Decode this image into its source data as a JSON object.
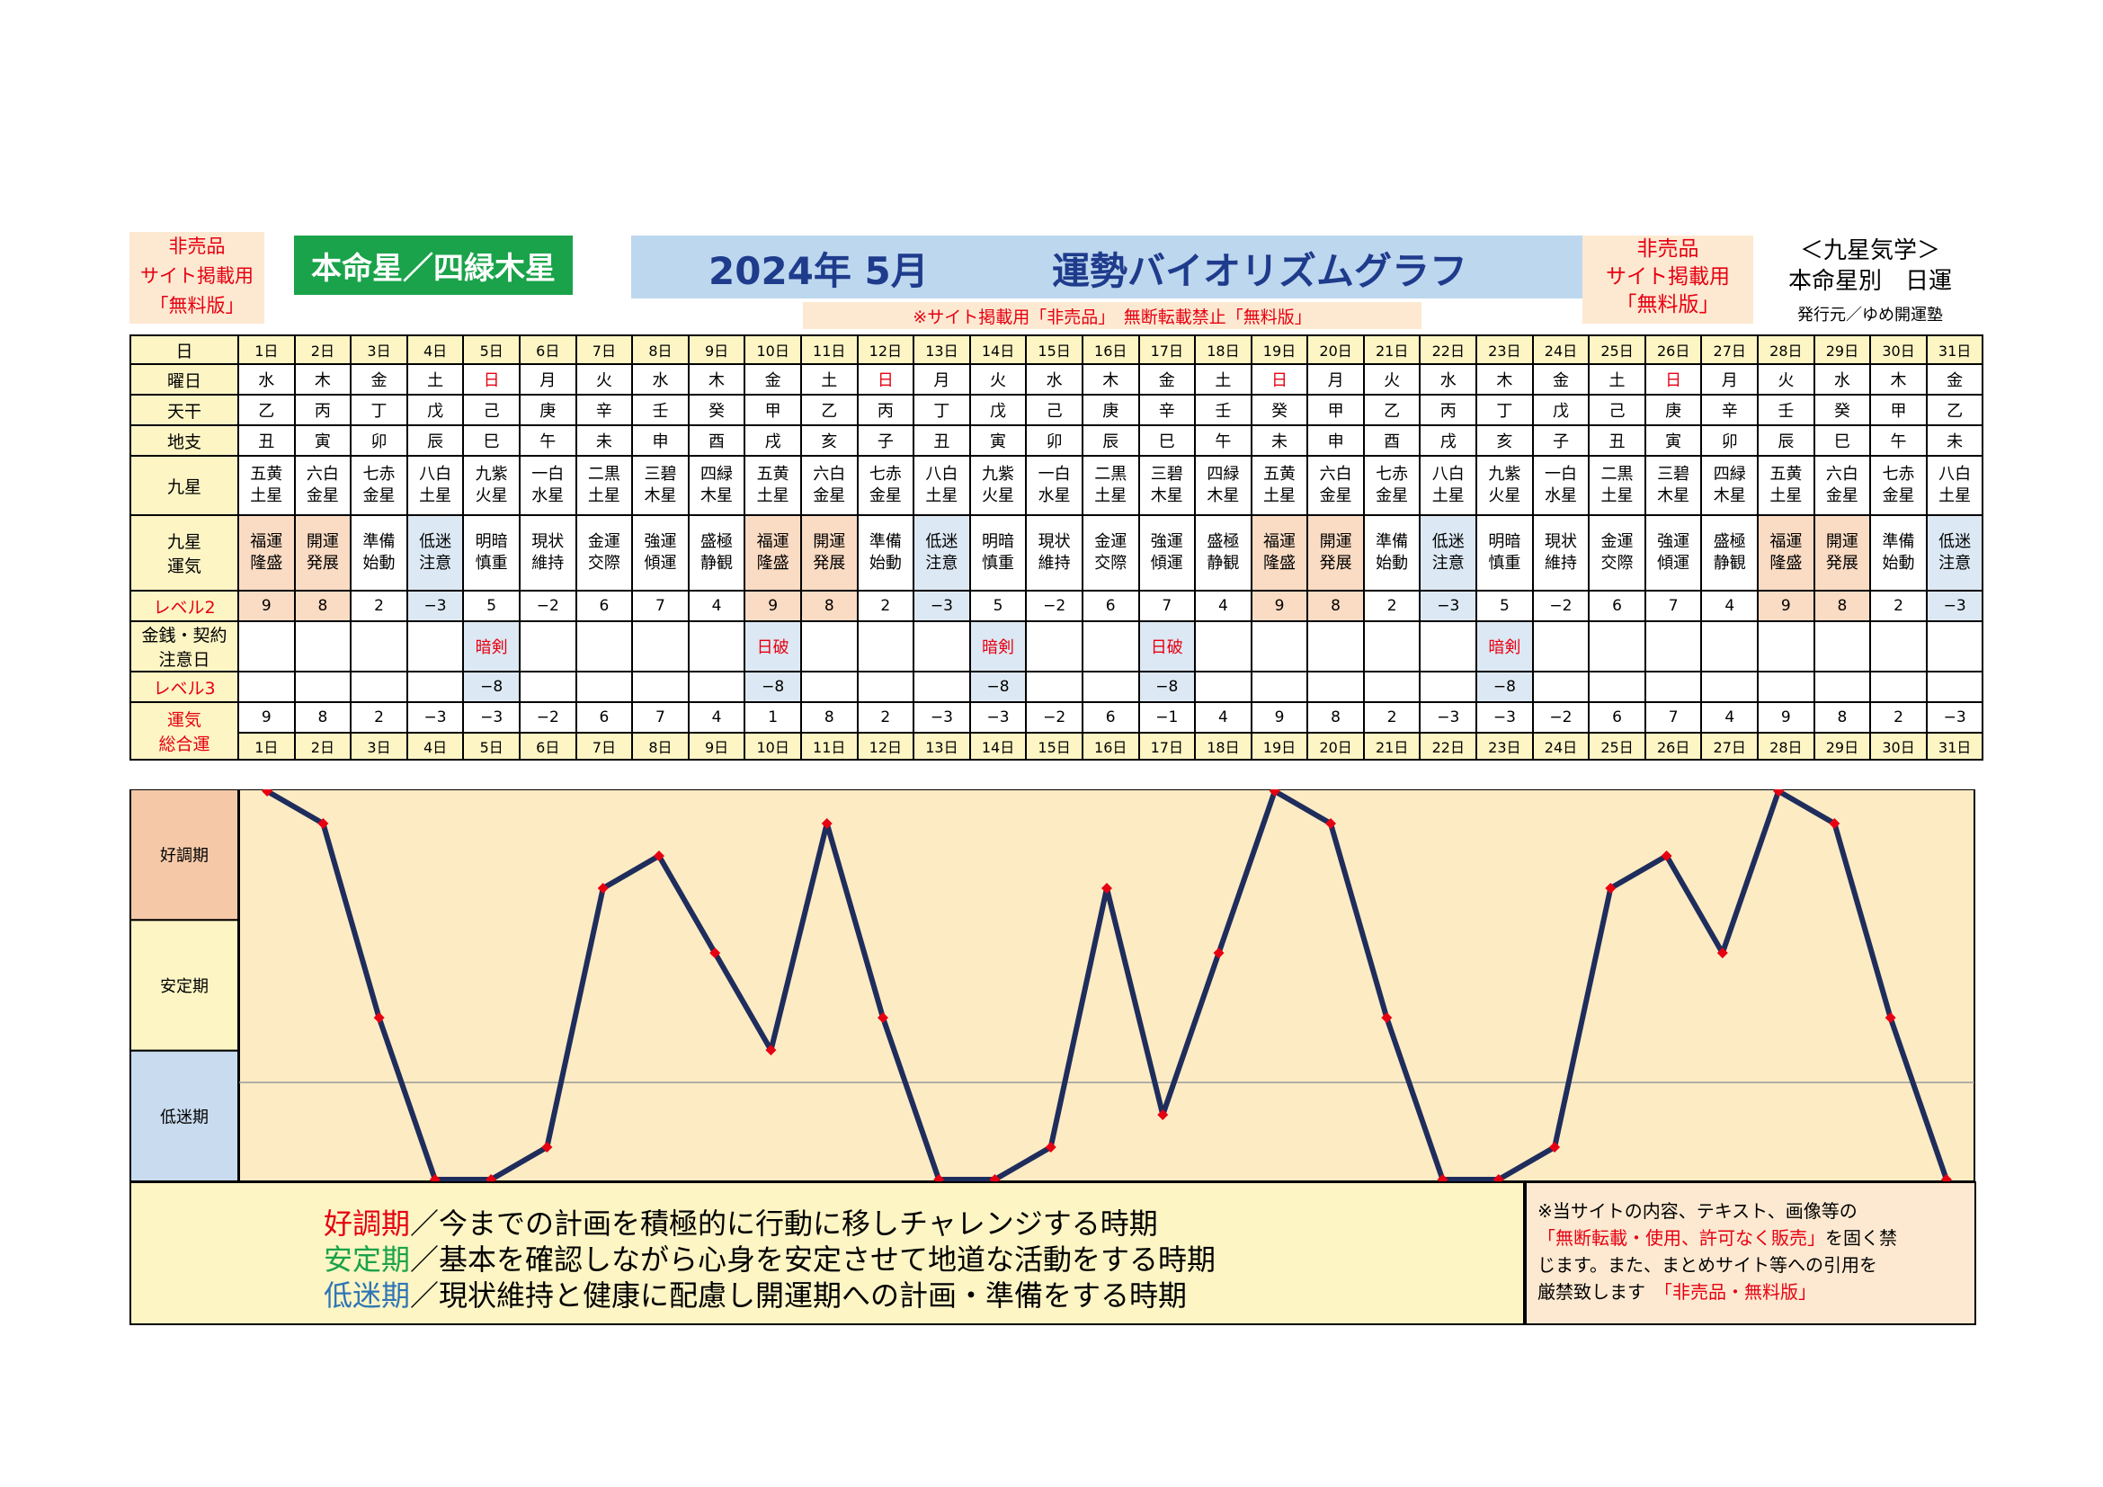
{
  "header": {
    "left_notice": [
      "非売品",
      "サイト掲載用",
      "「無料版」"
    ],
    "honmei": "本命星／四緑木星",
    "title_year": "2024年 5月",
    "title_main": "運勢バイオリズムグラフ",
    "warning": "※サイト掲載用「非売品」　無断転載禁止「無料版」",
    "right_notice": [
      "非売品",
      "サイト掲載用",
      "「無料版」"
    ],
    "kyusei_title": [
      "＜九星気学＞",
      "本命星別　日運"
    ],
    "publisher": "発行元／ゆめ開運塾"
  },
  "row_labels": {
    "day": "日",
    "weekday": "曜日",
    "tenkan": "天干",
    "chishi": "地支",
    "kyusei": "九星",
    "kyusei_unki": [
      "九星",
      "運気"
    ],
    "level2": "レベル2",
    "money": [
      "金銭・契約",
      "注意日"
    ],
    "level3": "レベル3",
    "total": [
      "運気",
      "総合運"
    ]
  },
  "days": [
    "1日",
    "2日",
    "3日",
    "4日",
    "5日",
    "6日",
    "7日",
    "8日",
    "9日",
    "10日",
    "11日",
    "12日",
    "13日",
    "14日",
    "15日",
    "16日",
    "17日",
    "18日",
    "19日",
    "20日",
    "21日",
    "22日",
    "23日",
    "24日",
    "25日",
    "26日",
    "27日",
    "28日",
    "29日",
    "30日",
    "31日"
  ],
  "weekdays": [
    "水",
    "木",
    "金",
    "土",
    "日",
    "月",
    "火",
    "水",
    "木",
    "金",
    "土",
    "日",
    "月",
    "火",
    "水",
    "木",
    "金",
    "土",
    "日",
    "月",
    "火",
    "水",
    "木",
    "金",
    "土",
    "日",
    "月",
    "火",
    "水",
    "木",
    "金"
  ],
  "tenkan": [
    "乙",
    "丙",
    "丁",
    "戊",
    "己",
    "庚",
    "辛",
    "壬",
    "癸",
    "甲",
    "乙",
    "丙",
    "丁",
    "戊",
    "己",
    "庚",
    "辛",
    "壬",
    "癸",
    "甲",
    "乙",
    "丙",
    "丁",
    "戊",
    "己",
    "庚",
    "辛",
    "壬",
    "癸",
    "甲",
    "乙"
  ],
  "chishi": [
    "丑",
    "寅",
    "卯",
    "辰",
    "巳",
    "午",
    "未",
    "申",
    "酉",
    "戌",
    "亥",
    "子",
    "丑",
    "寅",
    "卯",
    "辰",
    "巳",
    "午",
    "未",
    "申",
    "酉",
    "戌",
    "亥",
    "子",
    "丑",
    "寅",
    "卯",
    "辰",
    "巳",
    "午",
    "未"
  ],
  "kyusei": [
    [
      "五黄",
      "土星"
    ],
    [
      "六白",
      "金星"
    ],
    [
      "七赤",
      "金星"
    ],
    [
      "八白",
      "土星"
    ],
    [
      "九紫",
      "火星"
    ],
    [
      "一白",
      "水星"
    ],
    [
      "二黒",
      "土星"
    ],
    [
      "三碧",
      "木星"
    ],
    [
      "四緑",
      "木星"
    ],
    [
      "五黄",
      "土星"
    ],
    [
      "六白",
      "金星"
    ],
    [
      "七赤",
      "金星"
    ],
    [
      "八白",
      "土星"
    ],
    [
      "九紫",
      "火星"
    ],
    [
      "一白",
      "水星"
    ],
    [
      "二黒",
      "土星"
    ],
    [
      "三碧",
      "木星"
    ],
    [
      "四緑",
      "木星"
    ],
    [
      "五黄",
      "土星"
    ],
    [
      "六白",
      "金星"
    ],
    [
      "七赤",
      "金星"
    ],
    [
      "八白",
      "土星"
    ],
    [
      "九紫",
      "火星"
    ],
    [
      "一白",
      "水星"
    ],
    [
      "二黒",
      "土星"
    ],
    [
      "三碧",
      "木星"
    ],
    [
      "四緑",
      "木星"
    ],
    [
      "五黄",
      "土星"
    ],
    [
      "六白",
      "金星"
    ],
    [
      "七赤",
      "金星"
    ],
    [
      "八白",
      "土星"
    ]
  ],
  "unki": [
    [
      "福運",
      "隆盛"
    ],
    [
      "開運",
      "発展"
    ],
    [
      "準備",
      "始動"
    ],
    [
      "低迷",
      "注意"
    ],
    [
      "明暗",
      "慎重"
    ],
    [
      "現状",
      "維持"
    ],
    [
      "金運",
      "交際"
    ],
    [
      "強運",
      "傾運"
    ],
    [
      "盛極",
      "静観"
    ],
    [
      "福運",
      "隆盛"
    ],
    [
      "開運",
      "発展"
    ],
    [
      "準備",
      "始動"
    ],
    [
      "低迷",
      "注意"
    ],
    [
      "明暗",
      "慎重"
    ],
    [
      "現状",
      "維持"
    ],
    [
      "金運",
      "交際"
    ],
    [
      "強運",
      "傾運"
    ],
    [
      "盛極",
      "静観"
    ],
    [
      "福運",
      "隆盛"
    ],
    [
      "開運",
      "発展"
    ],
    [
      "準備",
      "始動"
    ],
    [
      "低迷",
      "注意"
    ],
    [
      "明暗",
      "慎重"
    ],
    [
      "現状",
      "維持"
    ],
    [
      "金運",
      "交際"
    ],
    [
      "強運",
      "傾運"
    ],
    [
      "盛極",
      "静観"
    ],
    [
      "福運",
      "隆盛"
    ],
    [
      "開運",
      "発展"
    ],
    [
      "準備",
      "始動"
    ],
    [
      "低迷",
      "注意"
    ]
  ],
  "level2": [
    "9",
    "8",
    "2",
    "−3",
    "5",
    "−2",
    "6",
    "7",
    "4",
    "9",
    "8",
    "2",
    "−3",
    "5",
    "−2",
    "6",
    "7",
    "4",
    "9",
    "8",
    "2",
    "−3",
    "5",
    "−2",
    "6",
    "7",
    "4",
    "9",
    "8",
    "2",
    "−3"
  ],
  "money_caution": [
    "",
    "",
    "",
    "",
    "暗剣",
    "",
    "",
    "",
    "",
    "日破",
    "",
    "",
    "",
    "暗剣",
    "",
    "",
    "日破",
    "",
    "",
    "",
    "",
    "",
    "暗剣",
    "",
    "",
    "",
    "",
    "",
    "",
    "",
    ""
  ],
  "level3": [
    "",
    "",
    "",
    "",
    "−8",
    "",
    "",
    "",
    "",
    "−8",
    "",
    "",
    "",
    "−8",
    "",
    "",
    "−8",
    "",
    "",
    "",
    "",
    "",
    "−8",
    "",
    "",
    "",
    "",
    "",
    "",
    "",
    ""
  ],
  "total": [
    "9",
    "8",
    "2",
    "−3",
    "−3",
    "−2",
    "6",
    "7",
    "4",
    "1",
    "8",
    "2",
    "−3",
    "−3",
    "−2",
    "6",
    "−1",
    "4",
    "9",
    "8",
    "2",
    "−3",
    "−3",
    "−2",
    "6",
    "7",
    "4",
    "9",
    "8",
    "2",
    "−3"
  ],
  "colors": {
    "line": "#1f2d5c",
    "marker": "#e60012",
    "plot_bg": "#fdebc4",
    "band_good": "#f5c9a8",
    "band_stable": "#fdf5c4",
    "band_low": "#c9dcef",
    "title_bg": "#bdd7ee",
    "honmei_bg": "#1aa34a"
  },
  "chart_data": {
    "type": "line",
    "x": [
      1,
      2,
      3,
      4,
      5,
      6,
      7,
      8,
      9,
      10,
      11,
      12,
      13,
      14,
      15,
      16,
      17,
      18,
      19,
      20,
      21,
      22,
      23,
      24,
      25,
      26,
      27,
      28,
      29,
      30,
      31
    ],
    "series": [
      {
        "values": [
          9,
          8,
          2,
          -3,
          -3,
          -2,
          6,
          7,
          4,
          1,
          8,
          2,
          -3,
          -3,
          -2,
          6,
          -1,
          4,
          9,
          8,
          2,
          -3,
          -3,
          -2,
          6,
          7,
          4,
          9,
          8,
          2,
          -3
        ]
      }
    ],
    "ylim": [
      -3,
      9
    ],
    "bands": [
      "好調期",
      "安定期",
      "低迷期"
    ],
    "grid": false
  },
  "legend": [
    {
      "term": "好調期",
      "color": "#e60012",
      "text": "／今までの計画を積極的に行動に移しチャレンジする時期"
    },
    {
      "term": "安定期",
      "color": "#1aa34a",
      "text": "／基本を確認しながら心身を安定させて地道な活動をする時期"
    },
    {
      "term": "低迷期",
      "color": "#2e75b6",
      "text": "／現状維持と健康に配慮し開運期への計画・準備をする時期"
    }
  ],
  "notice": {
    "line1": "※当サイトの内容、テキスト、画像等の",
    "line2_red": "「無断転載・使用、許可なく販売」",
    "line2_rest": "を固く禁",
    "line3": "じます。また、まとめサイト等への引用を",
    "line4": "厳禁致します",
    "line4_red": "「非売品・無料版」"
  }
}
